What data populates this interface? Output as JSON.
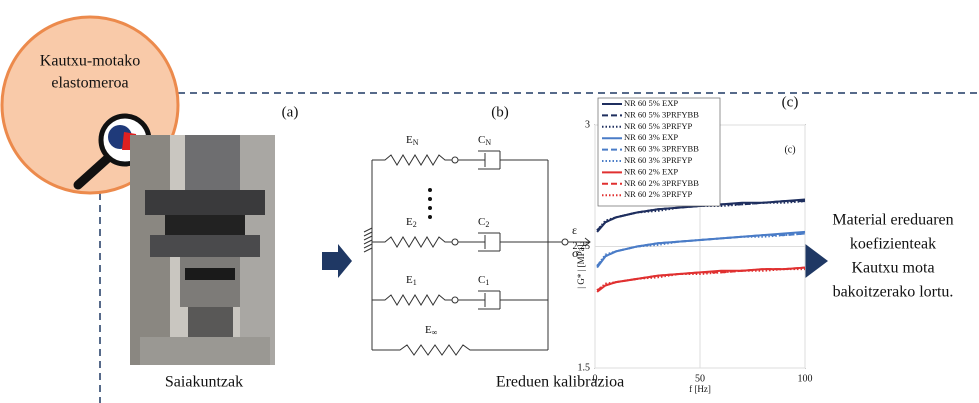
{
  "circle": {
    "lines": [
      "Kautxu-motako",
      "elastomeroa"
    ]
  },
  "panels": {
    "a": {
      "tag": "(a)",
      "caption": "Saiakuntzak"
    },
    "b": {
      "tag": "(b)",
      "caption": "Ereduen kalibrazioa",
      "labels": [
        {
          "main": "E",
          "sub": "N"
        },
        {
          "main": "C",
          "sub": "N"
        },
        {
          "main": "E",
          "sub": "2"
        },
        {
          "main": "C",
          "sub": "2"
        },
        {
          "main": "E",
          "sub": "1"
        },
        {
          "main": "C",
          "sub": "1"
        },
        {
          "main": "E",
          "sub": "∞"
        }
      ],
      "strain": "ε",
      "stress": "σ"
    },
    "c": {
      "tag": "(c)"
    }
  },
  "result": {
    "lines": [
      "Material ereduaren",
      "koefizienteak",
      "Kautxu mota",
      "bakoitzerako lortu."
    ]
  },
  "chart_data": {
    "type": "line",
    "inner_tag": "(c)",
    "x_label": "f [Hz]",
    "y_label": "| G* | [MPa]",
    "x": [
      1,
      5,
      10,
      20,
      30,
      40,
      50,
      60,
      70,
      80,
      90,
      100
    ],
    "xlim": [
      0,
      100
    ],
    "xticks": [
      0,
      50,
      100
    ],
    "ylim": [
      1.5,
      3
    ],
    "yticks": [
      1.5,
      2.25,
      3
    ],
    "grid": true,
    "series": [
      {
        "name": "NR 60 5% EXP",
        "color": "#1f2f5f",
        "style": "solid",
        "values": [
          2.34,
          2.4,
          2.43,
          2.46,
          2.48,
          2.49,
          2.5,
          2.51,
          2.52,
          2.52,
          2.53,
          2.54
        ]
      },
      {
        "name": "NR 60 5% 3PRFYBB",
        "color": "#1f2f5f",
        "style": "dashed",
        "values": [
          2.35,
          2.4,
          2.43,
          2.46,
          2.48,
          2.49,
          2.5,
          2.51,
          2.51,
          2.52,
          2.53,
          2.53
        ]
      },
      {
        "name": "NR 60 5% 3PRFYP",
        "color": "#1f2f5f",
        "style": "dotted",
        "values": [
          2.35,
          2.41,
          2.43,
          2.46,
          2.47,
          2.49,
          2.5,
          2.5,
          2.51,
          2.52,
          2.52,
          2.53
        ]
      },
      {
        "name": "NR 60 3% EXP",
        "color": "#4a7cc7",
        "style": "solid",
        "values": [
          2.12,
          2.19,
          2.22,
          2.25,
          2.27,
          2.28,
          2.29,
          2.3,
          2.31,
          2.32,
          2.33,
          2.34
        ]
      },
      {
        "name": "NR 60 3% 3PRFYBB",
        "color": "#4a7cc7",
        "style": "dashed",
        "values": [
          2.13,
          2.19,
          2.22,
          2.25,
          2.27,
          2.28,
          2.29,
          2.3,
          2.31,
          2.32,
          2.32,
          2.33
        ]
      },
      {
        "name": "NR 60 3% 3PRFYP",
        "color": "#4a7cc7",
        "style": "dotted",
        "values": [
          2.13,
          2.2,
          2.22,
          2.25,
          2.26,
          2.28,
          2.29,
          2.3,
          2.31,
          2.31,
          2.32,
          2.33
        ]
      },
      {
        "name": "NR 60 2% EXP",
        "color": "#e03030",
        "style": "solid",
        "values": [
          1.97,
          2.01,
          2.03,
          2.05,
          2.07,
          2.08,
          2.09,
          2.1,
          2.1,
          2.11,
          2.11,
          2.12
        ]
      },
      {
        "name": "NR 60 2% 3PRFYBB",
        "color": "#e03030",
        "style": "dashed",
        "values": [
          1.98,
          2.01,
          2.03,
          2.05,
          2.07,
          2.08,
          2.09,
          2.09,
          2.1,
          2.11,
          2.11,
          2.12
        ]
      },
      {
        "name": "NR 60 2% 3PRFYP",
        "color": "#e03030",
        "style": "dotted",
        "values": [
          1.98,
          2.02,
          2.03,
          2.05,
          2.06,
          2.08,
          2.08,
          2.09,
          2.1,
          2.1,
          2.11,
          2.11
        ]
      }
    ]
  }
}
